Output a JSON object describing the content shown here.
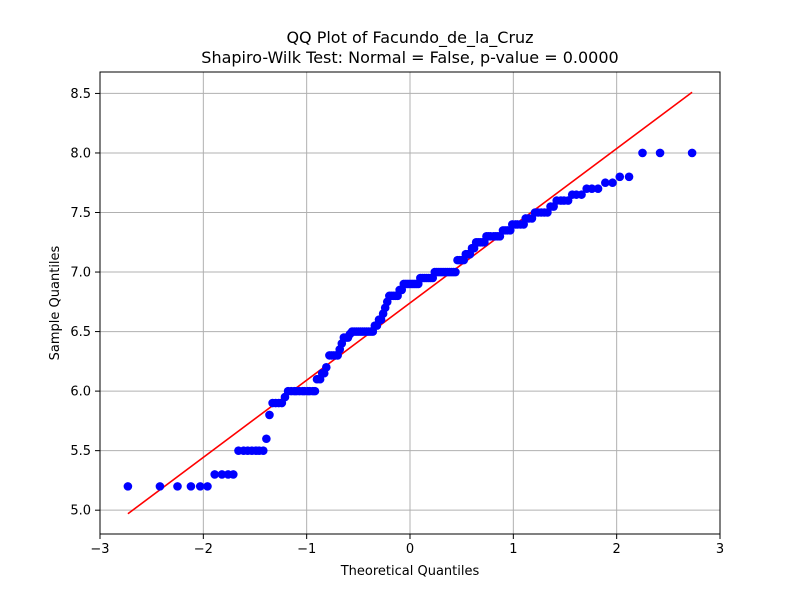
{
  "chart_data": {
    "type": "scatter",
    "title": "QQ Plot of Facundo_de_la_Cruz",
    "subtitle": "Shapiro-Wilk Test: Normal = False, p-value = 0.0000",
    "xlabel": "Theoretical Quantiles",
    "ylabel": "Sample Quantiles",
    "xlim": [
      -3.0,
      3.0
    ],
    "ylim": [
      4.8,
      8.68
    ],
    "xticks": [
      -3,
      -2,
      -1,
      0,
      1,
      2,
      3
    ],
    "xtick_labels": [
      "−3",
      "−2",
      "−1",
      "0",
      "1",
      "2",
      "3"
    ],
    "yticks": [
      5.0,
      5.5,
      6.0,
      6.5,
      7.0,
      7.5,
      8.0,
      8.5
    ],
    "ytick_labels": [
      "5.0",
      "5.5",
      "6.0",
      "6.5",
      "7.0",
      "7.5",
      "8.0",
      "8.5"
    ],
    "grid": true,
    "point_color": "#0000ff",
    "line_color": "#ff0000",
    "reference_line": {
      "x": [
        -2.73,
        2.73
      ],
      "y": [
        4.97,
        8.51
      ]
    },
    "points": [
      [
        -2.73,
        5.2
      ],
      [
        -2.42,
        5.2
      ],
      [
        -2.25,
        5.2
      ],
      [
        -2.12,
        5.2
      ],
      [
        -2.03,
        5.2
      ],
      [
        -1.96,
        5.2
      ],
      [
        -1.89,
        5.3
      ],
      [
        -1.82,
        5.3
      ],
      [
        -1.76,
        5.3
      ],
      [
        -1.71,
        5.3
      ],
      [
        -1.66,
        5.5
      ],
      [
        -1.61,
        5.5
      ],
      [
        -1.57,
        5.5
      ],
      [
        -1.53,
        5.5
      ],
      [
        -1.49,
        5.5
      ],
      [
        -1.46,
        5.5
      ],
      [
        -1.42,
        5.5
      ],
      [
        -1.39,
        5.6
      ],
      [
        -1.36,
        5.8
      ],
      [
        -1.33,
        5.9
      ],
      [
        -1.3,
        5.9
      ],
      [
        -1.27,
        5.9
      ],
      [
        -1.24,
        5.9
      ],
      [
        -1.21,
        5.95
      ],
      [
        -1.18,
        6.0
      ],
      [
        -1.15,
        6.0
      ],
      [
        -1.12,
        6.0
      ],
      [
        -1.1,
        6.0
      ],
      [
        -1.07,
        6.0
      ],
      [
        -1.04,
        6.0
      ],
      [
        -1.02,
        6.0
      ],
      [
        -0.99,
        6.0
      ],
      [
        -0.97,
        6.0
      ],
      [
        -0.94,
        6.0
      ],
      [
        -0.92,
        6.0
      ],
      [
        -0.9,
        6.1
      ],
      [
        -0.87,
        6.1
      ],
      [
        -0.85,
        6.15
      ],
      [
        -0.83,
        6.15
      ],
      [
        -0.81,
        6.2
      ],
      [
        -0.78,
        6.3
      ],
      [
        -0.76,
        6.3
      ],
      [
        -0.74,
        6.3
      ],
      [
        -0.72,
        6.3
      ],
      [
        -0.7,
        6.3
      ],
      [
        -0.68,
        6.35
      ],
      [
        -0.66,
        6.4
      ],
      [
        -0.64,
        6.45
      ],
      [
        -0.62,
        6.45
      ],
      [
        -0.6,
        6.45
      ],
      [
        -0.58,
        6.48
      ],
      [
        -0.56,
        6.5
      ],
      [
        -0.54,
        6.5
      ],
      [
        -0.52,
        6.5
      ],
      [
        -0.5,
        6.5
      ],
      [
        -0.48,
        6.5
      ],
      [
        -0.46,
        6.5
      ],
      [
        -0.44,
        6.5
      ],
      [
        -0.42,
        6.5
      ],
      [
        -0.4,
        6.5
      ],
      [
        -0.38,
        6.5
      ],
      [
        -0.36,
        6.5
      ],
      [
        -0.34,
        6.55
      ],
      [
        -0.32,
        6.55
      ],
      [
        -0.3,
        6.6
      ],
      [
        -0.28,
        6.6
      ],
      [
        -0.26,
        6.65
      ],
      [
        -0.24,
        6.7
      ],
      [
        -0.22,
        6.75
      ],
      [
        -0.2,
        6.8
      ],
      [
        -0.18,
        6.8
      ],
      [
        -0.16,
        6.8
      ],
      [
        -0.14,
        6.8
      ],
      [
        -0.12,
        6.8
      ],
      [
        -0.1,
        6.85
      ],
      [
        -0.08,
        6.85
      ],
      [
        -0.06,
        6.9
      ],
      [
        -0.04,
        6.9
      ],
      [
        -0.02,
        6.9
      ],
      [
        0.0,
        6.9
      ],
      [
        0.02,
        6.9
      ],
      [
        0.04,
        6.9
      ],
      [
        0.06,
        6.9
      ],
      [
        0.08,
        6.9
      ],
      [
        0.1,
        6.95
      ],
      [
        0.12,
        6.95
      ],
      [
        0.14,
        6.95
      ],
      [
        0.16,
        6.95
      ],
      [
        0.18,
        6.95
      ],
      [
        0.2,
        6.95
      ],
      [
        0.22,
        6.95
      ],
      [
        0.24,
        7.0
      ],
      [
        0.26,
        7.0
      ],
      [
        0.28,
        7.0
      ],
      [
        0.3,
        7.0
      ],
      [
        0.32,
        7.0
      ],
      [
        0.34,
        7.0
      ],
      [
        0.36,
        7.0
      ],
      [
        0.38,
        7.0
      ],
      [
        0.4,
        7.0
      ],
      [
        0.42,
        7.0
      ],
      [
        0.44,
        7.0
      ],
      [
        0.46,
        7.1
      ],
      [
        0.48,
        7.1
      ],
      [
        0.5,
        7.1
      ],
      [
        0.52,
        7.1
      ],
      [
        0.54,
        7.15
      ],
      [
        0.56,
        7.15
      ],
      [
        0.58,
        7.15
      ],
      [
        0.6,
        7.2
      ],
      [
        0.62,
        7.2
      ],
      [
        0.64,
        7.25
      ],
      [
        0.66,
        7.25
      ],
      [
        0.68,
        7.25
      ],
      [
        0.7,
        7.25
      ],
      [
        0.72,
        7.25
      ],
      [
        0.74,
        7.3
      ],
      [
        0.76,
        7.3
      ],
      [
        0.78,
        7.3
      ],
      [
        0.81,
        7.3
      ],
      [
        0.83,
        7.3
      ],
      [
        0.85,
        7.3
      ],
      [
        0.87,
        7.3
      ],
      [
        0.9,
        7.35
      ],
      [
        0.92,
        7.35
      ],
      [
        0.94,
        7.35
      ],
      [
        0.97,
        7.35
      ],
      [
        0.99,
        7.4
      ],
      [
        1.02,
        7.4
      ],
      [
        1.04,
        7.4
      ],
      [
        1.07,
        7.4
      ],
      [
        1.1,
        7.4
      ],
      [
        1.12,
        7.45
      ],
      [
        1.15,
        7.45
      ],
      [
        1.18,
        7.45
      ],
      [
        1.21,
        7.5
      ],
      [
        1.24,
        7.5
      ],
      [
        1.27,
        7.5
      ],
      [
        1.3,
        7.5
      ],
      [
        1.33,
        7.5
      ],
      [
        1.36,
        7.55
      ],
      [
        1.39,
        7.55
      ],
      [
        1.42,
        7.6
      ],
      [
        1.46,
        7.6
      ],
      [
        1.49,
        7.6
      ],
      [
        1.53,
        7.6
      ],
      [
        1.57,
        7.65
      ],
      [
        1.61,
        7.65
      ],
      [
        1.66,
        7.65
      ],
      [
        1.71,
        7.7
      ],
      [
        1.76,
        7.7
      ],
      [
        1.82,
        7.7
      ],
      [
        1.89,
        7.75
      ],
      [
        1.96,
        7.75
      ],
      [
        2.03,
        7.8
      ],
      [
        2.12,
        7.8
      ],
      [
        2.25,
        8.0
      ],
      [
        2.42,
        8.0
      ],
      [
        2.73,
        8.0
      ]
    ]
  }
}
